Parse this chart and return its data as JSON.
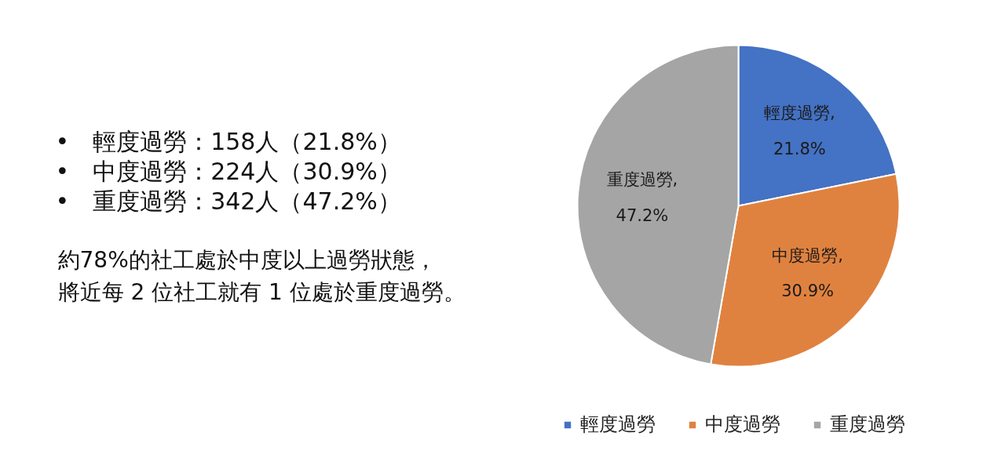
{
  "chart_data": {
    "type": "pie",
    "categories": [
      "輕度過勞",
      "中度過勞",
      "重度過勞"
    ],
    "values": [
      21.8,
      30.9,
      47.2
    ],
    "colors": [
      "#4472c4",
      "#e0823f",
      "#a5a5a5"
    ],
    "value_labels": [
      "輕度過勞,\n21.8%",
      "中度過勞,\n30.9%",
      "重度過勞,\n47.2%"
    ],
    "legend": "bottom",
    "annotations": [
      "• 輕度過勞：158人（21.8%）",
      "• 中度過勞：224人（30.9%）",
      "• 重度過勞：342人（47.2%）",
      "約78%的社工處於中度以上過勞狀態，",
      "將近每 2 位社工就有 1 位處於重度過勞。"
    ]
  }
}
